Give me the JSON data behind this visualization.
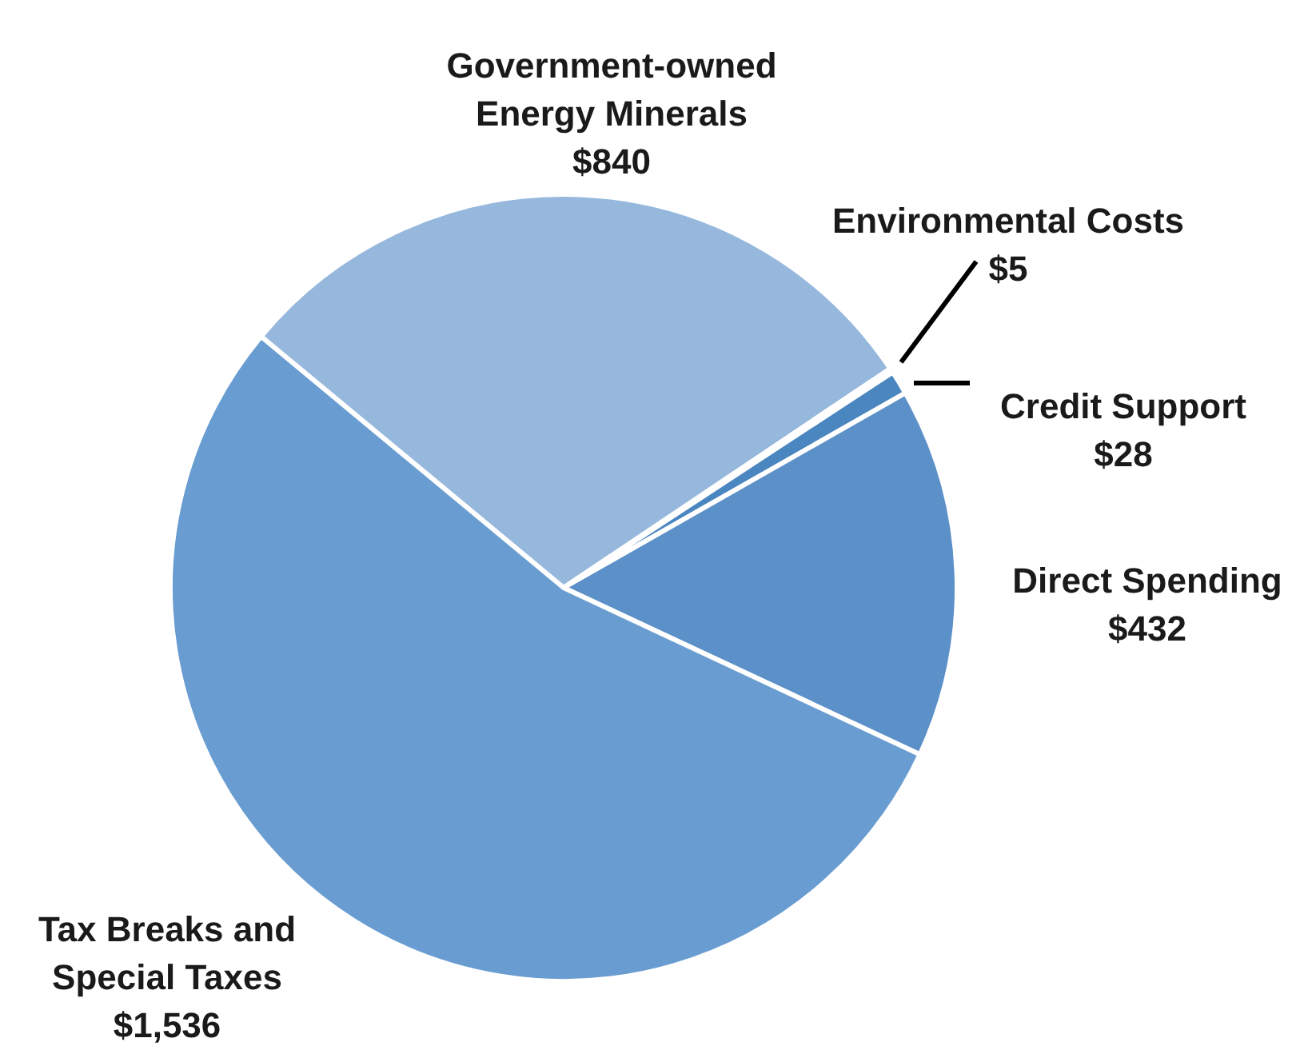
{
  "chart_data": {
    "type": "pie",
    "categories": [
      "Government-owned Energy Minerals",
      "Environmental Costs",
      "Credit Support",
      "Direct Spending",
      "Tax Breaks and Special Taxes"
    ],
    "values": [
      840,
      5,
      28,
      432,
      1536
    ],
    "colors": [
      "#97b8dd",
      "#e4ecf5",
      "#4a86bf",
      "#5b90c8",
      "#699dd1"
    ],
    "value_labels": [
      "$840",
      "$5",
      "$28",
      "$432",
      "$1,536"
    ]
  }
}
